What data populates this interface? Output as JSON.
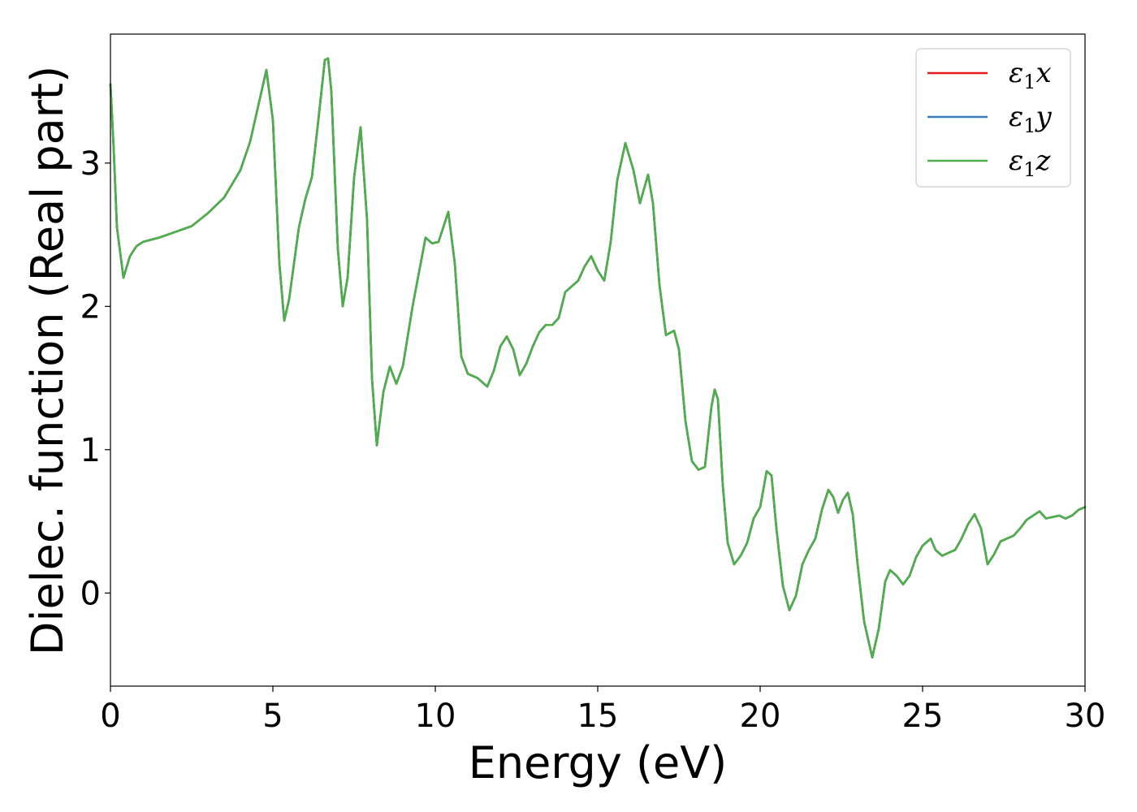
{
  "chart_data": {
    "type": "line",
    "title": "",
    "xlabel": "Energy (eV)",
    "ylabel": "Dielec. function (Real part)",
    "xlim": [
      0,
      30
    ],
    "ylim": [
      -0.65,
      3.9
    ],
    "xticks": [
      0,
      5,
      10,
      15,
      20,
      25,
      30
    ],
    "yticks": [
      0,
      1,
      2,
      3
    ],
    "grid": false,
    "legend_position": "top-right",
    "x": [
      0.0,
      0.1,
      0.2,
      0.4,
      0.6,
      0.8,
      1.0,
      1.5,
      2.0,
      2.5,
      3.0,
      3.5,
      4.0,
      4.3,
      4.6,
      4.8,
      5.0,
      5.2,
      5.35,
      5.5,
      5.8,
      6.0,
      6.2,
      6.4,
      6.6,
      6.7,
      6.8,
      7.0,
      7.15,
      7.3,
      7.5,
      7.7,
      7.9,
      8.05,
      8.2,
      8.4,
      8.6,
      8.8,
      9.0,
      9.3,
      9.7,
      9.9,
      10.1,
      10.4,
      10.6,
      10.8,
      11.0,
      11.3,
      11.6,
      11.8,
      12.0,
      12.2,
      12.4,
      12.6,
      12.8,
      13.0,
      13.2,
      13.4,
      13.6,
      13.8,
      14.0,
      14.2,
      14.4,
      14.6,
      14.8,
      15.0,
      15.2,
      15.4,
      15.6,
      15.85,
      16.1,
      16.3,
      16.55,
      16.7,
      16.9,
      17.1,
      17.35,
      17.5,
      17.7,
      17.9,
      18.1,
      18.3,
      18.5,
      18.6,
      18.7,
      18.85,
      19.0,
      19.2,
      19.4,
      19.6,
      19.8,
      20.0,
      20.2,
      20.35,
      20.5,
      20.7,
      20.9,
      21.1,
      21.3,
      21.5,
      21.7,
      21.9,
      22.1,
      22.25,
      22.4,
      22.55,
      22.7,
      22.85,
      23.0,
      23.2,
      23.45,
      23.65,
      23.85,
      24.0,
      24.2,
      24.4,
      24.6,
      24.8,
      25.0,
      25.25,
      25.4,
      25.6,
      25.8,
      26.0,
      26.2,
      26.4,
      26.6,
      26.8,
      27.0,
      27.2,
      27.4,
      27.6,
      27.8,
      28.0,
      28.2,
      28.4,
      28.6,
      28.8,
      29.0,
      29.2,
      29.4,
      29.6,
      29.8,
      30.0
    ],
    "series": [
      {
        "name": "ε₁x",
        "label_base": "ε",
        "label_sub": "1",
        "label_var": "x",
        "color": "#e41a1c",
        "values": [
          3.55,
          3.1,
          2.55,
          2.2,
          2.35,
          2.42,
          2.45,
          2.48,
          2.52,
          2.56,
          2.65,
          2.76,
          2.95,
          3.15,
          3.45,
          3.65,
          3.3,
          2.3,
          1.9,
          2.05,
          2.55,
          2.75,
          2.9,
          3.3,
          3.72,
          3.73,
          3.5,
          2.4,
          2.0,
          2.2,
          2.9,
          3.25,
          2.6,
          1.5,
          1.03,
          1.4,
          1.58,
          1.46,
          1.58,
          2.0,
          2.48,
          2.44,
          2.45,
          2.66,
          2.3,
          1.65,
          1.53,
          1.5,
          1.44,
          1.55,
          1.72,
          1.79,
          1.7,
          1.52,
          1.6,
          1.72,
          1.82,
          1.87,
          1.87,
          1.92,
          2.1,
          2.14,
          2.18,
          2.28,
          2.35,
          2.25,
          2.18,
          2.45,
          2.88,
          3.14,
          2.95,
          2.72,
          2.92,
          2.72,
          2.15,
          1.8,
          1.83,
          1.7,
          1.2,
          0.92,
          0.86,
          0.88,
          1.3,
          1.42,
          1.35,
          0.75,
          0.35,
          0.2,
          0.26,
          0.35,
          0.52,
          0.6,
          0.85,
          0.82,
          0.45,
          0.05,
          -0.12,
          -0.02,
          0.2,
          0.3,
          0.38,
          0.58,
          0.72,
          0.67,
          0.56,
          0.65,
          0.7,
          0.55,
          0.2,
          -0.2,
          -0.45,
          -0.25,
          0.08,
          0.16,
          0.12,
          0.06,
          0.12,
          0.25,
          0.33,
          0.38,
          0.3,
          0.26,
          0.28,
          0.3,
          0.38,
          0.48,
          0.55,
          0.45,
          0.2,
          0.27,
          0.36,
          0.38,
          0.4,
          0.45,
          0.51,
          0.54,
          0.57,
          0.52,
          0.53,
          0.54,
          0.52,
          0.54,
          0.58,
          0.6
        ]
      },
      {
        "name": "ε₁y",
        "label_base": "ε",
        "label_sub": "1",
        "label_var": "y",
        "color": "#377eb8",
        "values": [
          3.55,
          3.1,
          2.55,
          2.2,
          2.35,
          2.42,
          2.45,
          2.48,
          2.52,
          2.56,
          2.65,
          2.76,
          2.95,
          3.15,
          3.45,
          3.65,
          3.3,
          2.3,
          1.9,
          2.05,
          2.55,
          2.75,
          2.9,
          3.3,
          3.72,
          3.73,
          3.5,
          2.4,
          2.0,
          2.2,
          2.9,
          3.25,
          2.6,
          1.5,
          1.03,
          1.4,
          1.58,
          1.46,
          1.58,
          2.0,
          2.48,
          2.44,
          2.45,
          2.66,
          2.3,
          1.65,
          1.53,
          1.5,
          1.44,
          1.55,
          1.72,
          1.79,
          1.7,
          1.52,
          1.6,
          1.72,
          1.82,
          1.87,
          1.87,
          1.92,
          2.1,
          2.14,
          2.18,
          2.28,
          2.35,
          2.25,
          2.18,
          2.45,
          2.88,
          3.14,
          2.95,
          2.72,
          2.92,
          2.72,
          2.15,
          1.8,
          1.83,
          1.7,
          1.2,
          0.92,
          0.86,
          0.88,
          1.3,
          1.42,
          1.35,
          0.75,
          0.35,
          0.2,
          0.26,
          0.35,
          0.52,
          0.6,
          0.85,
          0.82,
          0.45,
          0.05,
          -0.12,
          -0.02,
          0.2,
          0.3,
          0.38,
          0.58,
          0.72,
          0.67,
          0.56,
          0.65,
          0.7,
          0.55,
          0.2,
          -0.2,
          -0.45,
          -0.25,
          0.08,
          0.16,
          0.12,
          0.06,
          0.12,
          0.25,
          0.33,
          0.38,
          0.3,
          0.26,
          0.28,
          0.3,
          0.38,
          0.48,
          0.55,
          0.45,
          0.2,
          0.27,
          0.36,
          0.38,
          0.4,
          0.45,
          0.51,
          0.54,
          0.57,
          0.52,
          0.53,
          0.54,
          0.52,
          0.54,
          0.58,
          0.6
        ]
      },
      {
        "name": "ε₁z",
        "label_base": "ε",
        "label_sub": "1",
        "label_var": "z",
        "color": "#4daf4a",
        "values": [
          3.55,
          3.1,
          2.55,
          2.2,
          2.35,
          2.42,
          2.45,
          2.48,
          2.52,
          2.56,
          2.65,
          2.76,
          2.95,
          3.15,
          3.45,
          3.65,
          3.3,
          2.3,
          1.9,
          2.05,
          2.55,
          2.75,
          2.9,
          3.3,
          3.72,
          3.73,
          3.5,
          2.4,
          2.0,
          2.2,
          2.9,
          3.25,
          2.6,
          1.5,
          1.03,
          1.4,
          1.58,
          1.46,
          1.58,
          2.0,
          2.48,
          2.44,
          2.45,
          2.66,
          2.3,
          1.65,
          1.53,
          1.5,
          1.44,
          1.55,
          1.72,
          1.79,
          1.7,
          1.52,
          1.6,
          1.72,
          1.82,
          1.87,
          1.87,
          1.92,
          2.1,
          2.14,
          2.18,
          2.28,
          2.35,
          2.25,
          2.18,
          2.45,
          2.88,
          3.14,
          2.95,
          2.72,
          2.92,
          2.72,
          2.15,
          1.8,
          1.83,
          1.7,
          1.2,
          0.92,
          0.86,
          0.88,
          1.3,
          1.42,
          1.35,
          0.75,
          0.35,
          0.2,
          0.26,
          0.35,
          0.52,
          0.6,
          0.85,
          0.82,
          0.45,
          0.05,
          -0.12,
          -0.02,
          0.2,
          0.3,
          0.38,
          0.58,
          0.72,
          0.67,
          0.56,
          0.65,
          0.7,
          0.55,
          0.2,
          -0.2,
          -0.45,
          -0.25,
          0.08,
          0.16,
          0.12,
          0.06,
          0.12,
          0.25,
          0.33,
          0.38,
          0.3,
          0.26,
          0.28,
          0.3,
          0.38,
          0.48,
          0.55,
          0.45,
          0.2,
          0.27,
          0.36,
          0.38,
          0.4,
          0.45,
          0.51,
          0.54,
          0.57,
          0.52,
          0.53,
          0.54,
          0.52,
          0.54,
          0.58,
          0.6
        ]
      }
    ]
  }
}
